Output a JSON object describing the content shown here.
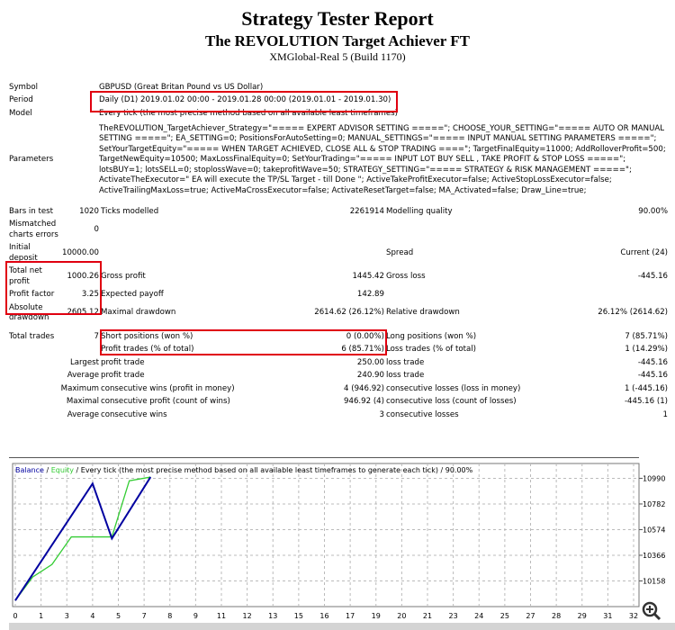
{
  "header": {
    "title": "Strategy Tester Report",
    "subtitle": "The REVOLUTION Target Achiever FT",
    "server": "XMGlobal-Real 5 (Build 1170)"
  },
  "info": {
    "symbol_label": "Symbol",
    "symbol": "GBPUSD (Great Britan Pound vs US Dollar)",
    "period_label": "Period",
    "period": "Daily (D1) 2019.01.02 00:00 - 2019.01.28 00:00 (2019.01.01 - 2019.01.30)",
    "model_label": "Model",
    "model": "Every tick (the most precise method based on all available least timeframes)",
    "parameters_label": "Parameters",
    "parameters": "TheREVOLUTION_TargetAchiever_Strategy=\"===== EXPERT ADVISOR SETTING =====\"; CHOOSE_YOUR_SETTING=\"===== AUTO OR MANUAL SETTING =====\"; EA_SETTING=0; PositionsForAutoSetting=0; MANUAL_SETTINGS=\"===== INPUT MANUAL SETTING PARAMETERS =====\"; SetYourTargetEquity=\"===== WHEN TARGET ACHIEVED, CLOSE ALL & STOP TRADING ====\"; TargetFinalEquity=11000; AddRolloverProfit=500; TargetNewEquity=10500; MaxLossFinalEquity=0; SetYourTrading=\"===== INPUT LOT BUY SELL , TAKE PROFIT & STOP LOSS =====\"; lotsBUY=1; lotsSELL=0; stoplossWave=0; takeprofitWave=50; STRATEGY_SETTING=\"===== STRATEGY & RISK MANAGEMENT =====\"; ActivateTheExecutor=\" EA will execute the TP/SL Target - till Done \"; ActiveTakeProfitExecutor=false; ActiveStopLossExecutor=false; ActiveTrailingMaxLoss=true; ActiveMaCrossExecutor=false; ActivateResetTarget=false; MA_Activated=false; Draw_Line=true;"
  },
  "stats": {
    "bars_label": "Bars in test",
    "bars": "1020",
    "ticks_label": "Ticks modelled",
    "ticks": "2261914",
    "quality_label": "Modelling quality",
    "quality": "90.00%",
    "mismatch_label": "Mismatched charts errors",
    "mismatch": "0",
    "initial_label": "Initial deposit",
    "initial": "10000.00",
    "spread_label": "Spread",
    "spread": "Current (24)",
    "net_label": "Total net profit",
    "net": "1000.26",
    "gross_profit_label": "Gross profit",
    "gross_profit": "1445.42",
    "gross_loss_label": "Gross loss",
    "gross_loss": "-445.16",
    "pf_label": "Profit factor",
    "pf": "3.25",
    "payoff_label": "Expected payoff",
    "payoff": "142.89",
    "abs_dd_label": "Absolute drawdown",
    "abs_dd": "2605.12",
    "max_dd_label": "Maximal drawdown",
    "max_dd": "2614.62 (26.12%)",
    "rel_dd_label": "Relative drawdown",
    "rel_dd": "26.12% (2614.62)",
    "trades_label": "Total trades",
    "trades": "7",
    "short_label": "Short positions (won %)",
    "short": "0 (0.00%)",
    "long_label": "Long positions (won %)",
    "long": "7 (85.71%)",
    "profit_trades_label": "Profit trades (% of total)",
    "profit_trades": "6 (85.71%)",
    "loss_trades_label": "Loss trades (% of total)",
    "loss_trades": "1 (14.29%)",
    "largest": "Largest",
    "largest_pt_label": "profit trade",
    "largest_pt": "250.00",
    "largest_lt_label": "loss trade",
    "largest_lt": "-445.16",
    "average": "Average",
    "avg_pt_label": "profit trade",
    "avg_pt": "240.90",
    "avg_lt_label": "loss trade",
    "avg_lt": "-445.16",
    "maximum": "Maximum",
    "max_cw_label": "consecutive wins (profit in money)",
    "max_cw": "4 (946.92)",
    "max_cl_label": "consecutive losses (loss in money)",
    "max_cl": "1 (-445.16)",
    "maximal": "Maximal",
    "mcp_label": "consecutive profit (count of wins)",
    "mcp": "946.92 (4)",
    "mcl_label": "consecutive loss (count of losses)",
    "mcl": "-445.16 (1)",
    "average2": "Average",
    "acw_label": "consecutive wins",
    "acw": "3",
    "acl_label": "consecutive losses",
    "acl": "1"
  },
  "chart_data": {
    "type": "line",
    "legend": {
      "balance": "Balance",
      "sep1": " / ",
      "equity": "Equity",
      "rest": " / Every tick (the most precise method based on all available least timeframes to generate each tick) / 90.00%"
    },
    "xlim": [
      0,
      32
    ],
    "ylim": [
      9950,
      11110
    ],
    "x_ticks": [
      0,
      1,
      3,
      4,
      5,
      7,
      8,
      9,
      11,
      12,
      13,
      15,
      16,
      17,
      19,
      20,
      21,
      23,
      24,
      25,
      27,
      28,
      29,
      31,
      32
    ],
    "y_ticks": [
      10158,
      10366,
      10574,
      10782,
      10990
    ],
    "grid": true,
    "series": [
      {
        "name": "Balance",
        "color": "#0000a0",
        "x": [
          0,
          4,
          5,
          7
        ],
        "y": [
          10000,
          10947,
          10502,
          11000
        ]
      },
      {
        "name": "Equity",
        "color": "#33cc33",
        "x": [
          0,
          0.9,
          1.9,
          2.9,
          5,
          5.9,
          7
        ],
        "y": [
          10000,
          10190,
          10292,
          10515,
          10515,
          10970,
          11000
        ]
      }
    ]
  },
  "zoom_icon": "zoom-in-icon"
}
